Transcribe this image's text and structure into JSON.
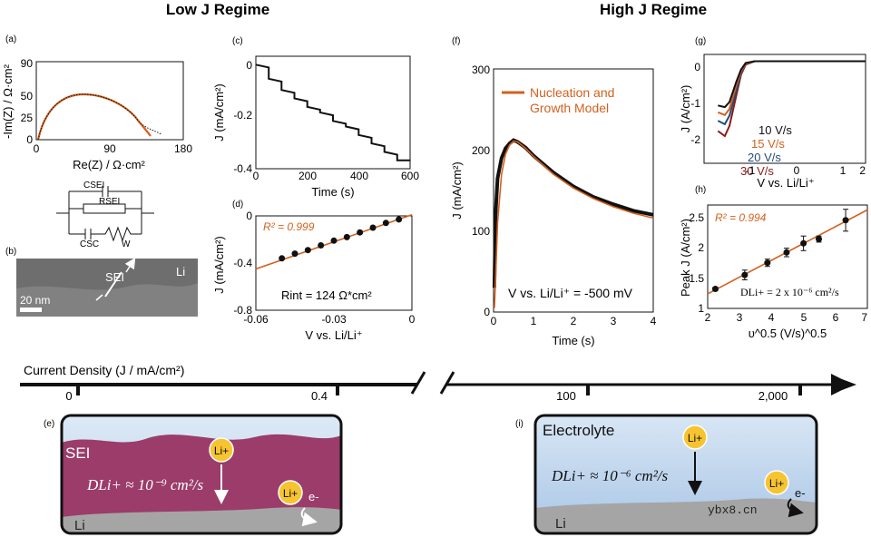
{
  "headers": {
    "low": "Low J Regime",
    "high": "High J Regime"
  },
  "panels": {
    "a": {
      "tag": "(a)",
      "ylabel": "-Im(Z) / Ω·cm²",
      "xlabel": "Re(Z) / Ω·cm²",
      "xticks": [
        "0",
        "90",
        "180"
      ],
      "yticks": [
        "0",
        "25",
        "50",
        "90"
      ],
      "circuit": {
        "c_sei": "CSEI",
        "r_sei": "RSEI",
        "c_sc": "CSC",
        "w": "W"
      }
    },
    "b": {
      "tag": "(b)",
      "label_sei": "SEI",
      "label_li": "Li",
      "scale": "20 nm"
    },
    "c": {
      "tag": "(c)",
      "ylabel": "J (mA/cm²)",
      "xlabel": "Time (s)",
      "xticks": [
        "0",
        "200",
        "400",
        "600"
      ],
      "yticks": [
        "0",
        "-0.2",
        "-0.4"
      ]
    },
    "d": {
      "tag": "(d)",
      "ylabel": "J (mA/cm²)",
      "xlabel": "V vs. Li/Li⁺",
      "xticks": [
        "-0.06",
        "-0.03",
        "0"
      ],
      "yticks": [
        "0",
        "-0.4",
        "-0.8"
      ],
      "r2": "R² = 0.999",
      "rint": "Rint = 124 Ω*cm²"
    },
    "f": {
      "tag": "(f)",
      "ylabel": "J (mA/cm²)",
      "xlabel": "Time (s)",
      "xticks": [
        "0",
        "1",
        "2",
        "3",
        "4"
      ],
      "yticks": [
        "0",
        "100",
        "200",
        "300"
      ],
      "legend": [
        "Nucleation and",
        "Growth Model"
      ],
      "note": "V vs. Li/Li⁺ = -500 mV"
    },
    "g": {
      "tag": "(g)",
      "ylabel": "J (A/cm²)",
      "xlabel": "V vs. Li/Li⁺",
      "xticks": [
        "-1",
        "0",
        "1",
        "2"
      ],
      "yticks": [
        "0",
        "-1",
        "-2"
      ],
      "rates": [
        "10 V/s",
        "15 V/s",
        "20 V/s",
        "30 V/s"
      ]
    },
    "h": {
      "tag": "(h)",
      "ylabel": "Peak J (A/cm²)",
      "xlabel": "υ^0.5 (V/s)^0.5",
      "xticks": [
        "2",
        "3",
        "4",
        "5",
        "6",
        "7"
      ],
      "yticks": [
        "1",
        "1.5",
        "2",
        "2.5"
      ],
      "r2": "R² = 0.994",
      "dli": "DLi+ = 2 x 10⁻⁶ cm²/s"
    },
    "e": {
      "tag": "(e)",
      "sei": "SEI",
      "li": "Li",
      "li_ion": "Li+",
      "electron": "e-",
      "d_text": "DLi+ ≈ 10⁻⁹ cm²/s"
    },
    "i": {
      "tag": "(i)",
      "electrolyte": "Electrolyte",
      "li": "Li",
      "li_ion": "Li+",
      "electron": "e-",
      "d_text": "DLi+ ≈ 10⁻⁶ cm²/s",
      "watermark": "ybx8.cn"
    }
  },
  "axis": {
    "title": "Current Density (J / mA/cm²)",
    "ticks": [
      "0",
      "0.4",
      "100",
      "2,000"
    ]
  },
  "chart_data": [
    {
      "type": "line",
      "title": "Low J Regime (c)",
      "xlabel": "Time (s)",
      "ylabel": "J (mA/cm²)",
      "xlim": [
        0,
        600
      ],
      "ylim": [
        -0.4,
        0
      ],
      "series": [
        {
          "name": "measured",
          "x": [
            0,
            50,
            50,
            100,
            100,
            150,
            150,
            200,
            200,
            250,
            250,
            300,
            300,
            350,
            350,
            400,
            400,
            450,
            450,
            500,
            500,
            550,
            550,
            600
          ],
          "values": [
            -0.03,
            -0.04,
            -0.08,
            -0.09,
            -0.12,
            -0.13,
            -0.15,
            -0.16,
            -0.18,
            -0.19,
            -0.2,
            -0.21,
            -0.23,
            -0.24,
            -0.25,
            -0.26,
            -0.28,
            -0.29,
            -0.31,
            -0.32,
            -0.34,
            -0.35,
            -0.37,
            -0.37
          ]
        }
      ]
    },
    {
      "type": "scatter",
      "title": "Low J Regime (d)",
      "xlabel": "V vs. Li/Li⁺",
      "ylabel": "J (mA/cm²)",
      "xlim": [
        -0.06,
        0
      ],
      "ylim": [
        -0.8,
        0
      ],
      "series": [
        {
          "name": "data",
          "x": [
            -0.05,
            -0.045,
            -0.04,
            -0.035,
            -0.03,
            -0.025,
            -0.02,
            -0.015,
            -0.01,
            -0.005
          ],
          "values": [
            -0.36,
            -0.32,
            -0.29,
            -0.25,
            -0.21,
            -0.18,
            -0.14,
            -0.1,
            -0.06,
            -0.03
          ]
        },
        {
          "name": "fit",
          "x": [
            -0.06,
            0
          ],
          "values": [
            -0.45,
            0.01
          ]
        }
      ]
    },
    {
      "type": "line",
      "title": "High J Regime (f)",
      "xlabel": "Time (s)",
      "ylabel": "J (mA/cm²)",
      "xlim": [
        0,
        4
      ],
      "ylim": [
        0,
        300
      ],
      "series": [
        {
          "name": "measured",
          "x": [
            0.02,
            0.05,
            0.1,
            0.2,
            0.3,
            0.4,
            0.5,
            0.6,
            0.8,
            1.0,
            1.5,
            2.0,
            2.5,
            3.0,
            3.5,
            4.0
          ],
          "values": [
            30,
            120,
            165,
            190,
            202,
            208,
            212,
            210,
            203,
            193,
            172,
            155,
            142,
            133,
            125,
            120
          ]
        },
        {
          "name": "Nucleation and Growth Model",
          "x": [
            0.02,
            0.05,
            0.1,
            0.2,
            0.3,
            0.4,
            0.5,
            0.6,
            0.8,
            1.0,
            1.5,
            2.0,
            2.5,
            3.0,
            3.5,
            4.0
          ],
          "values": [
            5,
            40,
            110,
            170,
            195,
            206,
            211,
            210,
            202,
            192,
            170,
            153,
            140,
            130,
            122,
            116
          ]
        }
      ]
    },
    {
      "type": "line",
      "title": "High J Regime (g)",
      "xlabel": "V vs. Li/Li⁺",
      "ylabel": "J (A/cm²)",
      "xlim": [
        -1.5,
        2
      ],
      "ylim": [
        -3,
        0.2
      ],
      "series": [
        {
          "name": "10 V/s",
          "x": [
            -1.2,
            -1.05,
            -0.95,
            -0.8,
            -0.7,
            -0.6,
            -0.4,
            0,
            2
          ],
          "values": [
            -1.3,
            -1.35,
            -1.2,
            -0.6,
            -0.25,
            -0.05,
            0,
            0,
            0
          ]
        },
        {
          "name": "15 V/s",
          "x": [
            -1.2,
            -1.05,
            -0.95,
            -0.8,
            -0.7,
            -0.6,
            -0.4,
            0,
            2
          ],
          "values": [
            -1.5,
            -1.58,
            -1.4,
            -0.7,
            -0.3,
            -0.07,
            0,
            0,
            0
          ]
        },
        {
          "name": "20 V/s",
          "x": [
            -1.2,
            -1.05,
            -0.95,
            -0.8,
            -0.7,
            -0.6,
            -0.4,
            0,
            2
          ],
          "values": [
            -1.75,
            -1.85,
            -1.6,
            -0.85,
            -0.35,
            -0.08,
            0,
            0,
            0
          ]
        },
        {
          "name": "30 V/s",
          "x": [
            -1.2,
            -1.05,
            -0.95,
            -0.8,
            -0.7,
            -0.6,
            -0.4,
            0,
            2
          ],
          "values": [
            -2.05,
            -2.2,
            -1.9,
            -1.0,
            -0.4,
            -0.1,
            0,
            0,
            0
          ]
        }
      ]
    },
    {
      "type": "scatter",
      "title": "High J Regime (h)",
      "xlabel": "υ^0.5 (V/s)^0.5",
      "ylabel": "Peak J (A/cm²)",
      "xlim": [
        2,
        7
      ],
      "ylim": [
        1,
        2.7
      ],
      "series": [
        {
          "name": "data",
          "x": [
            2.24,
            3.16,
            3.87,
            4.47,
            5.0,
            5.48,
            6.32
          ],
          "values": [
            1.32,
            1.55,
            1.75,
            1.92,
            2.07,
            2.14,
            2.45
          ],
          "err": [
            0.03,
            0.08,
            0.06,
            0.07,
            0.12,
            0.05,
            0.18
          ]
        },
        {
          "name": "fit",
          "x": [
            2,
            7
          ],
          "values": [
            1.24,
            2.62
          ]
        }
      ]
    }
  ]
}
